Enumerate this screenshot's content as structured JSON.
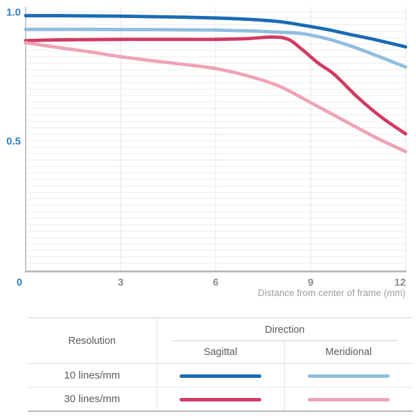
{
  "chart_data": {
    "type": "line",
    "title": "",
    "xlabel": "Distance from center of frame (mm)",
    "ylabel": "",
    "xlim": [
      0,
      12
    ],
    "ylim": [
      0,
      1.02
    ],
    "x_ticks": [
      {
        "value": 0,
        "label": "0"
      },
      {
        "value": 3,
        "label": "3"
      },
      {
        "value": 6,
        "label": "6"
      },
      {
        "value": 9,
        "label": "9"
      },
      {
        "value": 12,
        "label": "12"
      }
    ],
    "y_ticks": [
      {
        "value": 1.0,
        "label": "1.0"
      },
      {
        "value": 0.5,
        "label": "0.5"
      }
    ],
    "grid": {
      "horizontal_step": 0.025,
      "vertical_at": [
        3,
        6,
        9,
        12
      ]
    },
    "legend_position": "bottom-table",
    "series": [
      {
        "id": "10-sagittal",
        "name": "10 lines/mm Sagittal",
        "color": "#1a6bb3",
        "x": [
          0,
          1,
          2,
          3,
          4,
          5,
          6,
          7,
          8,
          8.75,
          9.5,
          10.25,
          11,
          12
        ],
        "y": [
          0.985,
          0.985,
          0.984,
          0.983,
          0.981,
          0.979,
          0.976,
          0.971,
          0.962,
          0.948,
          0.932,
          0.912,
          0.893,
          0.864
        ]
      },
      {
        "id": "10-meridional",
        "name": "10 lines/mm Meridional",
        "color": "#8fbede",
        "x": [
          0,
          1,
          2,
          3,
          4,
          5,
          6,
          7,
          8,
          8.75,
          9.5,
          10.25,
          11,
          12
        ],
        "y": [
          0.932,
          0.932,
          0.932,
          0.931,
          0.931,
          0.93,
          0.929,
          0.926,
          0.921,
          0.915,
          0.896,
          0.868,
          0.834,
          0.786
        ]
      },
      {
        "id": "30-sagittal",
        "name": "30 lines/mm Sagittal",
        "color": "#d23a62",
        "x": [
          0,
          1,
          2,
          3,
          4,
          5,
          6,
          7,
          7.8,
          8.3,
          8.75,
          9.25,
          9.75,
          10.5,
          11.25,
          12
        ],
        "y": [
          0.888,
          0.891,
          0.892,
          0.893,
          0.893,
          0.893,
          0.893,
          0.896,
          0.902,
          0.893,
          0.852,
          0.8,
          0.757,
          0.667,
          0.59,
          0.527
        ]
      },
      {
        "id": "30-meridional",
        "name": "30 lines/mm Meridional",
        "color": "#efa3b6",
        "x": [
          0,
          1,
          2,
          3,
          4,
          5,
          6,
          7,
          8,
          9,
          10,
          11,
          12
        ],
        "y": [
          0.88,
          0.862,
          0.845,
          0.826,
          0.81,
          0.796,
          0.78,
          0.752,
          0.712,
          0.648,
          0.582,
          0.516,
          0.458
        ]
      }
    ]
  },
  "legend_table": {
    "resolution_header": "Resolution",
    "direction_header": "Direction",
    "direction_columns": [
      "Sagittal",
      "Meridional"
    ],
    "rows": [
      {
        "resolution": "10 lines/mm",
        "sagittal_color": "#1a6bb3",
        "meridional_color": "#8fbede"
      },
      {
        "resolution": "30 lines/mm",
        "sagittal_color": "#d23a62",
        "meridional_color": "#efa3b6"
      }
    ]
  },
  "colors": {
    "axis_label_blue": "#2e7ec2",
    "tick_gray": "#8c8c8c",
    "axis_title_gray": "#9c9c9c",
    "axis_line_y": "#c6c6c6",
    "axis_line_x": "#b0b0b0",
    "grid_h": "#ededed",
    "grid_v": "#e4e4e4",
    "table_text": "#595959"
  }
}
